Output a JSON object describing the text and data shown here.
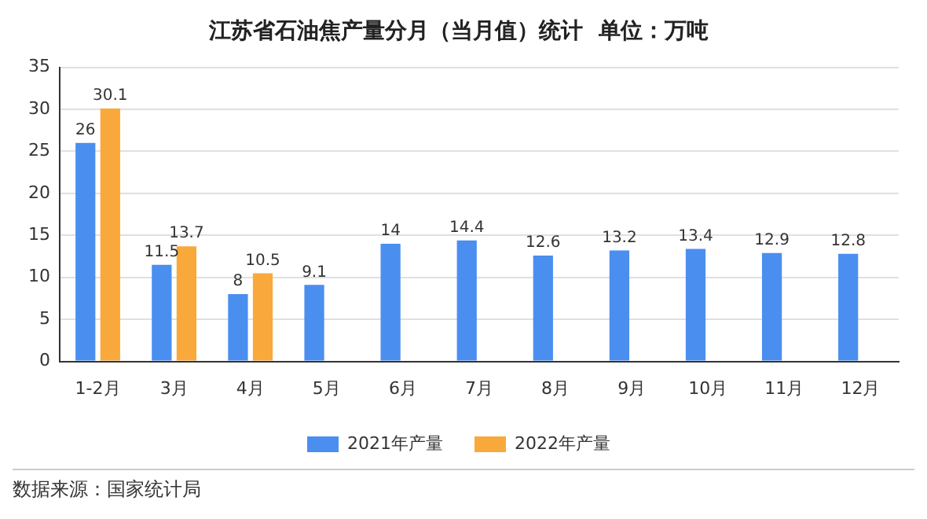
{
  "chart_data": {
    "type": "bar",
    "title": "江苏省石油焦产量分月（当月值）统计  单位：万吨",
    "categories": [
      "1-2月",
      "3月",
      "4月",
      "5月",
      "6月",
      "7月",
      "8月",
      "9月",
      "10月",
      "11月",
      "12月"
    ],
    "series": [
      {
        "name": "2021年产量",
        "color": "#4a8ef0",
        "values": [
          26,
          11.5,
          8,
          9.1,
          14,
          14.4,
          12.6,
          13.2,
          13.4,
          12.9,
          12.8
        ]
      },
      {
        "name": "2022年产量",
        "color": "#f9a93b",
        "values": [
          30.1,
          13.7,
          10.5,
          null,
          null,
          null,
          null,
          null,
          null,
          null,
          null
        ]
      }
    ],
    "ylim": [
      0,
      35
    ],
    "yticks": [
      0,
      5,
      10,
      15,
      20,
      25,
      30,
      35
    ],
    "grid": "y",
    "legend": "bottom",
    "data_labels": true,
    "annotations": [
      "数据来源：国家统计局"
    ]
  }
}
